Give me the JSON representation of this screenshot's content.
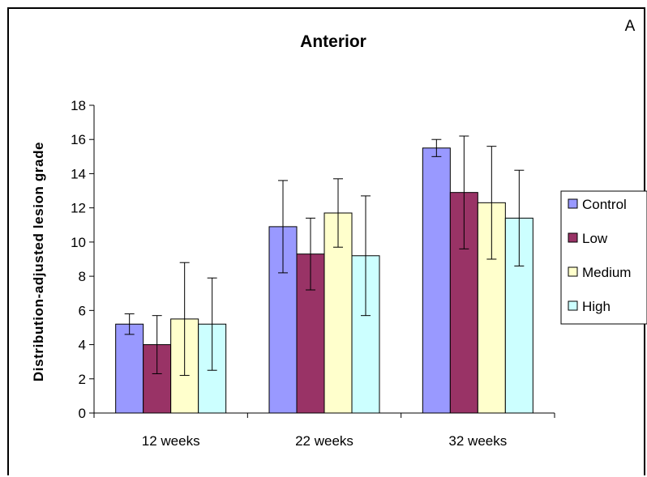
{
  "chart_data": {
    "type": "bar",
    "title": "Anterior",
    "panel_label": "A",
    "xlabel": "",
    "ylabel": "Distribution-adjusted lesion grade",
    "ylim": [
      0,
      18
    ],
    "yticks": [
      0,
      2,
      4,
      6,
      8,
      10,
      12,
      14,
      16,
      18
    ],
    "categories": [
      "12 weeks",
      "22 weeks",
      "32 weeks"
    ],
    "series": [
      {
        "name": "Control",
        "color": "#9999ff",
        "values": [
          5.2,
          10.9,
          15.5
        ],
        "errors": [
          0.6,
          2.7,
          0.5
        ]
      },
      {
        "name": "Low",
        "color": "#993366",
        "values": [
          4.0,
          9.3,
          12.9
        ],
        "errors": [
          1.7,
          2.1,
          3.3
        ]
      },
      {
        "name": "Medium",
        "color": "#ffffcc",
        "values": [
          5.5,
          11.7,
          12.3
        ],
        "errors": [
          3.3,
          2.0,
          3.3
        ]
      },
      {
        "name": "High",
        "color": "#ccffff",
        "values": [
          5.2,
          9.2,
          11.4
        ],
        "errors": [
          2.7,
          3.5,
          2.8
        ]
      }
    ],
    "legend_position": "right",
    "grid": false
  }
}
